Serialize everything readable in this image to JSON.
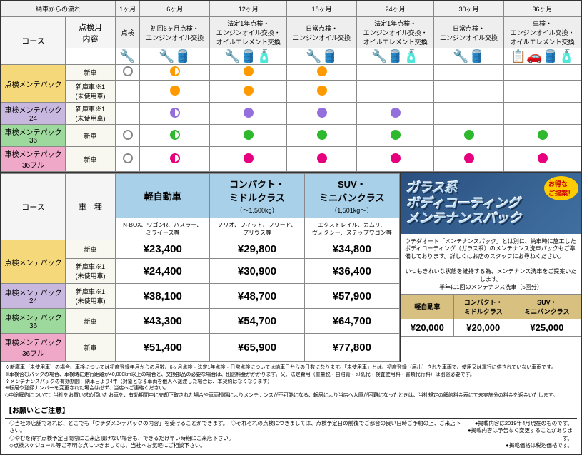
{
  "top": {
    "flowLabel": "納車からの流れ",
    "months": [
      "1ヶ月",
      "6ヶ月",
      "12ヶ月",
      "18ヶ月",
      "24ヶ月",
      "30ヶ月",
      "36ヶ月"
    ],
    "contentLabel": "点検月\n内容",
    "courseLabel": "コース",
    "services": [
      "点検",
      "初回6ヶ月点検・\nエンジンオイル交換",
      "法定1年点検・\nエンジンオイル交換・\nオイルエレメント交換",
      "日常点検・\nエンジンオイル交換",
      "法定1年点検・\nエンジンオイル交換・\nオイルエレメント交換",
      "日常点検・\nエンジンオイル交換",
      "車検・\nエンジンオイル交換・\nオイルエレメント交換"
    ],
    "plans": [
      {
        "name": "点検メンテパック",
        "cls": "plan-yellow",
        "rows": [
          {
            "sub": "新車",
            "dots": [
              "o",
              "ho",
              "or",
              "or",
              "",
              "",
              "",
              ""
            ]
          },
          {
            "sub": "新庫車※1\n(未使用車)",
            "dots": [
              "",
              "or",
              "or",
              "or",
              "",
              "",
              "",
              ""
            ]
          }
        ]
      },
      {
        "name": "車検メンテパック24",
        "cls": "plan-purple",
        "rows": [
          {
            "sub": "新庫車※1\n(未使用車)",
            "dots": [
              "",
              "hp",
              "pu",
              "pu",
              "pu",
              "",
              "",
              ""
            ]
          }
        ]
      },
      {
        "name": "車検メンテパック36",
        "cls": "plan-green",
        "rows": [
          {
            "sub": "新車",
            "dots": [
              "o",
              "hg",
              "gr",
              "gr",
              "gr",
              "gr",
              "gr",
              ""
            ]
          }
        ]
      },
      {
        "name": "車検メンテパック36フル",
        "cls": "plan-pink",
        "rows": [
          {
            "sub": "新車",
            "dots": [
              "o",
              "hpk",
              "pk",
              "pk",
              "pk",
              "pk",
              "pk",
              "pk"
            ]
          }
        ]
      }
    ]
  },
  "price": {
    "carLabel": "車　種",
    "courseLabel": "コース",
    "cars": [
      {
        "name": "軽自動車",
        "sub": "N-BOX、ワゴンR、ハスラー、\nミライース等"
      },
      {
        "name": "コンパクト・\nミドルクラス",
        "subhead": "（〜1,500kg）",
        "sub": "ソリオ、フィット、フリード、\nプリウス等"
      },
      {
        "name": "SUV・\nミニバンクラス",
        "subhead": "（1,501kg〜）",
        "sub": "エクストレイル、カムリ、\nヴォクシー、ステップワゴン等"
      }
    ],
    "rows": [
      {
        "plan": "点検メンテパック",
        "cls": "plan-yellow",
        "subs": [
          {
            "sub": "新車",
            "p": [
              "¥23,400",
              "¥29,800",
              "¥34,800"
            ]
          },
          {
            "sub": "新庫車※1\n(未使用車)",
            "p": [
              "¥24,400",
              "¥30,900",
              "¥36,400"
            ]
          }
        ]
      },
      {
        "plan": "車検メンテパック24",
        "cls": "plan-purple",
        "subs": [
          {
            "sub": "新庫車※1\n(未使用車)",
            "p": [
              "¥38,100",
              "¥48,700",
              "¥57,900"
            ]
          }
        ]
      },
      {
        "plan": "車検メンテパック36",
        "cls": "plan-green",
        "subs": [
          {
            "sub": "新車",
            "p": [
              "¥43,300",
              "¥54,700",
              "¥64,700"
            ]
          }
        ]
      },
      {
        "plan": "車検メンテパック36フル",
        "cls": "plan-pink",
        "subs": [
          {
            "sub": "新車",
            "p": [
              "¥51,400",
              "¥65,900",
              "¥77,800"
            ]
          }
        ]
      }
    ]
  },
  "promo": {
    "badge": "お得な\nご提案！",
    "title": "ガラス系\nボディコーティング\nメンテナンスパック",
    "desc": "ウチダオート「メンテナンスパック」とは別に、納車時に施工したボディコーティング（ガラス系）のメンテナンス洗車パックもご準備しております。詳しくはお店のスタッフにお尋ねください。",
    "note": "いつもきれいな状態を維持する為、メンテナンス洗車をご提案いたします。\n半年に1回のメンテナンス洗車（5回分）",
    "hdrs": [
      "軽自動車",
      "コンパクト・\nミドルクラス",
      "SUV・\nミニバンクラス"
    ],
    "prices": [
      "¥20,000",
      "¥20,000",
      "¥25,000"
    ]
  },
  "notes": {
    "fine": "※新庫車（未使用車）の場合、車検については初度登録年月からの月数、6ヶ月点検・法定1年点検・日常点検については納車日からの日数になります。「未使用車」とは、初度登録（届出）された車両で、使用又は運行に供されていない車両です。\n※車検含むパックの場合、車検時に走行距離が40,000km以上の場合と、交換部品の必要な場合は、別途料金がかかります。又、法定費用（重量税・自賠責・印紙代・検査使用料・書類代行料）は別途必要です。\n※メンテナンスパックの有効期間：納車日より4年（対象となる車両を他人へ譲渡した場合は、本契約はなくなります）\n※転居や登録ナンバーを変更された場合は必ず、当店へご連絡ください。\n◇中途解約について：当社をお買い求め頂いたお車を、有効期間中に売却下取された場合や車両損傷によりメンテナンスが不可能になる、転居により当店へ入庫が困難になったときは、当社規定の解約料金表にて未実施分の料金を返金いたします。",
    "hdr": "【お願いとご注意】",
    "body": "◇当社の店舗であれば、どこでも「ウチダメンテパックの内容」を受けることができます。　◇それぞれの点検につきましては、点検予定日の前後でご都合の良い日時ご予約の上、ご来店下さい。\n◇やむを得ず点検予定日間際にご来店頂けない場合も、できるだけ早い時期にご来店下さい。\n◇点検スケジュール等ご不明な点につきましては、当社へお気軽にご相談下さい。",
    "right": "●掲載内容は2019年4月現在のものです。\n●掲載内容は予告なく変更することがあります。\n●掲載価格は税込価格です。"
  }
}
